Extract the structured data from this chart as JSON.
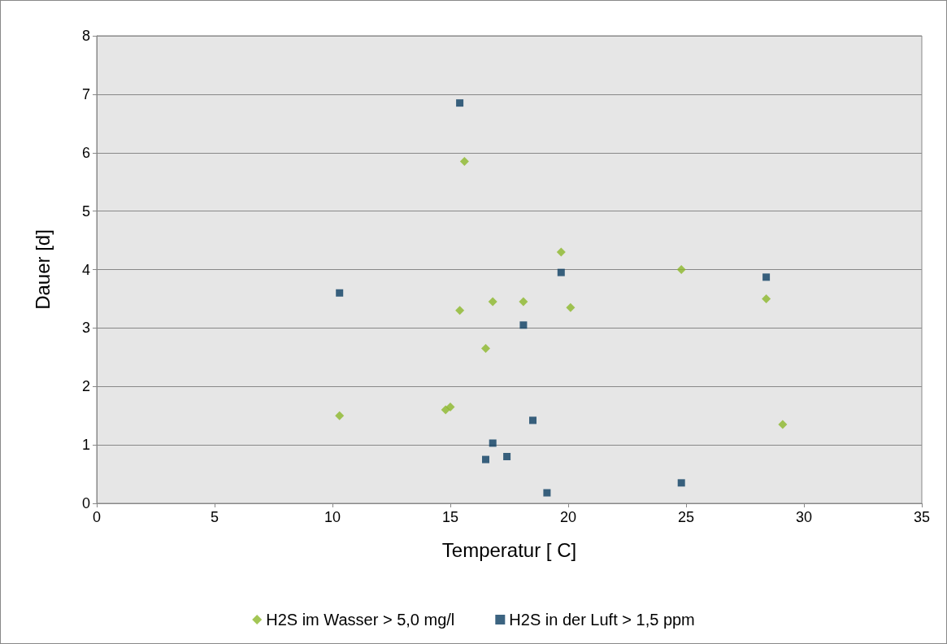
{
  "chart_data": {
    "type": "scatter",
    "xlabel": "Temperatur [ C]",
    "ylabel": "Dauer [d]",
    "xlim": [
      0,
      35
    ],
    "xticks": [
      0,
      5,
      10,
      15,
      20,
      25,
      30,
      35
    ],
    "ylim": [
      0,
      8
    ],
    "yticks": [
      0,
      1,
      2,
      3,
      4,
      5,
      6,
      7,
      8
    ],
    "grid": "y",
    "legend": "bottom",
    "series": [
      {
        "name": "H2S im Wasser > 5,0 mg/l",
        "color": "#8cb82b",
        "marker": "diamond",
        "x": [
          10.3,
          14.8,
          15.0,
          15.4,
          15.6,
          16.5,
          16.8,
          18.1,
          19.7,
          20.1,
          24.8,
          28.4,
          29.1
        ],
        "values": [
          1.5,
          1.6,
          1.65,
          3.3,
          5.85,
          2.65,
          3.45,
          3.45,
          4.3,
          3.35,
          4.0,
          3.5,
          1.35
        ]
      },
      {
        "name": "H2S in der Luft > 1,5 ppm",
        "color": "#0b3d62",
        "marker": "square",
        "x": [
          10.3,
          15.4,
          16.5,
          16.8,
          17.4,
          18.1,
          18.5,
          19.1,
          19.7,
          24.8,
          28.4
        ],
        "values": [
          3.6,
          6.85,
          0.75,
          1.03,
          0.8,
          3.05,
          1.42,
          0.18,
          3.95,
          0.35,
          3.87
        ]
      }
    ]
  }
}
